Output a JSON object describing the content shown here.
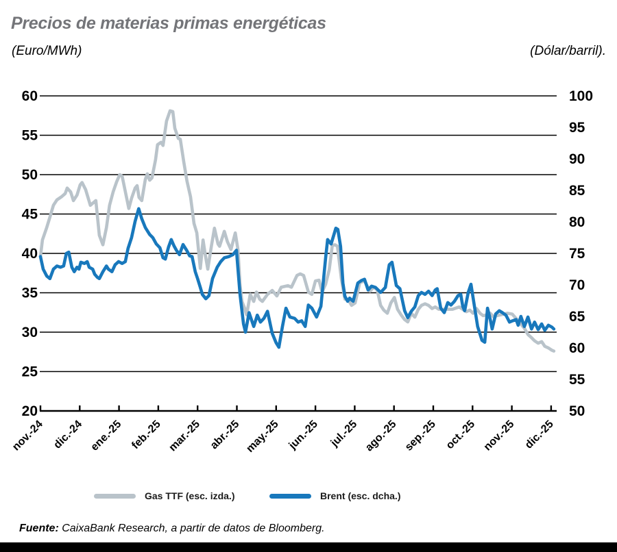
{
  "header": {
    "title": "Precios de materias primas energéticas",
    "subtitle_left": "(Euro/MWh)",
    "subtitle_right": "(Dólar/barril)."
  },
  "legend": [
    {
      "label": "Gas TTF (esc. izda.)",
      "color": "#b9c3ca"
    },
    {
      "label": "Brent (esc. dcha.)",
      "color": "#1878bc"
    }
  ],
  "source": {
    "label": "Fuente:",
    "text": " CaixaBank Research, a partir de datos de Bloomberg."
  },
  "colors": {
    "gas_ttf": "#b9c3ca",
    "brent": "#1878bc",
    "axis": "#000000",
    "title_gray": "#747579"
  },
  "chart_data": {
    "type": "line",
    "title": "Precios de materias primas energéticas",
    "xlabel": "",
    "ylabel_left": "(Euro/MWh)",
    "ylabel_right": "(Dólar/barril).",
    "grid": "horizontal",
    "legend_position": "bottom",
    "x_axis": {
      "labels": [
        "nov.-24",
        "dic.-24",
        "ene.-25",
        "feb.-25",
        "mar.-25",
        "abr.-25",
        "may.-25",
        "jun.-25",
        "jul.-25",
        "ago.-25",
        "sep.-25",
        "oct.-25",
        "nov.-25",
        "dic.-25"
      ],
      "unit": "months, 0 = nov.-24 tick"
    },
    "left_axis": {
      "min": 20,
      "max": 60,
      "step": 5,
      "ticks": [
        60,
        55,
        50,
        45,
        40,
        35,
        30,
        25,
        20
      ]
    },
    "right_axis": {
      "min": 50,
      "max": 100,
      "step": 5,
      "ticks": [
        100,
        95,
        90,
        85,
        80,
        75,
        70,
        65,
        60,
        55,
        50
      ]
    },
    "series": [
      {
        "name": "Gas TTF (esc. izda.)",
        "axis": "left",
        "color": "#b9c3ca",
        "x": [
          0,
          0.05,
          0.16,
          0.24,
          0.33,
          0.42,
          0.54,
          0.63,
          0.68,
          0.77,
          0.84,
          0.93,
          1.01,
          1.06,
          1.15,
          1.27,
          1.41,
          1.5,
          1.59,
          1.68,
          1.76,
          1.85,
          1.94,
          2.02,
          2.08,
          2.15,
          2.25,
          2.32,
          2.41,
          2.46,
          2.51,
          2.58,
          2.67,
          2.72,
          2.78,
          2.84,
          2.93,
          2.98,
          3.07,
          3.12,
          3.21,
          3.3,
          3.37,
          3.42,
          3.51,
          3.56,
          3.65,
          3.73,
          3.82,
          3.91,
          3.98,
          4.07,
          4.14,
          4.19,
          4.26,
          4.35,
          4.43,
          4.52,
          4.56,
          4.68,
          4.76,
          4.85,
          4.96,
          5.03,
          5.08,
          5.13,
          5.2,
          5.25,
          5.34,
          5.43,
          5.5,
          5.58,
          5.65,
          5.78,
          5.9,
          6.02,
          6.13,
          6.3,
          6.39,
          6.53,
          6.61,
          6.7,
          6.82,
          6.91,
          7.0,
          7.09,
          7.17,
          7.26,
          7.35,
          7.43,
          7.5,
          7.56,
          7.66,
          7.75,
          7.84,
          7.92,
          8.01,
          8.13,
          8.25,
          8.39,
          8.48,
          8.57,
          8.66,
          8.74,
          8.83,
          8.92,
          9.01,
          9.09,
          9.18,
          9.27,
          9.35,
          9.44,
          9.53,
          9.62,
          9.7,
          9.79,
          9.88,
          9.97,
          10.05,
          10.14,
          10.31,
          10.49,
          10.66,
          10.84,
          10.93,
          11.01,
          11.1,
          11.19,
          11.27,
          11.36,
          11.45,
          11.54,
          11.62,
          11.71,
          11.89,
          12.01,
          12.15,
          12.32,
          12.41,
          12.5,
          12.58,
          12.67,
          12.76,
          12.84,
          12.93,
          13.02,
          13.07
        ],
        "values": [
          39.6,
          41.7,
          43.3,
          44.6,
          46.1,
          46.8,
          47.2,
          47.6,
          48.3,
          47.8,
          46.7,
          47.4,
          48.7,
          49.0,
          48.1,
          46.1,
          46.7,
          42.3,
          41.1,
          43.3,
          46.1,
          47.8,
          49.1,
          50.0,
          49.8,
          48.1,
          45.7,
          47.0,
          48.3,
          48.6,
          47.1,
          46.7,
          49.4,
          50.1,
          49.3,
          49.6,
          51.9,
          53.8,
          54.1,
          53.7,
          56.8,
          58.1,
          58.0,
          55.9,
          54.6,
          54.5,
          51.6,
          49.2,
          47.2,
          43.8,
          42.6,
          38.1,
          41.7,
          40.0,
          38.0,
          40.9,
          43.2,
          41.2,
          40.9,
          42.8,
          41.5,
          40.5,
          42.6,
          40.4,
          36.0,
          33.9,
          33.0,
          32.2,
          34.8,
          33.9,
          35.1,
          34.2,
          33.9,
          34.8,
          35.3,
          34.6,
          35.7,
          35.9,
          35.7,
          37.2,
          37.4,
          37.2,
          35.1,
          34.8,
          36.5,
          36.6,
          35.1,
          36.1,
          37.9,
          41.0,
          41.1,
          40.9,
          36.8,
          34.2,
          34.1,
          33.4,
          33.7,
          36.3,
          36.5,
          35.2,
          35.7,
          35.4,
          33.4,
          32.8,
          32.4,
          33.7,
          34.4,
          32.9,
          32.2,
          31.6,
          31.3,
          32.4,
          31.9,
          32.9,
          33.4,
          33.6,
          33.4,
          33.0,
          33.2,
          32.9,
          32.9,
          32.9,
          33.2,
          32.6,
          32.8,
          32.4,
          33.0,
          32.4,
          32.1,
          32.2,
          32.4,
          31.9,
          32.1,
          32.2,
          32.4,
          32.3,
          31.5,
          30.5,
          29.7,
          29.3,
          28.9,
          28.6,
          28.8,
          28.2,
          28.0,
          27.7,
          27.6
        ]
      },
      {
        "name": "Brent (esc. dcha.)",
        "axis": "right",
        "color": "#1878bc",
        "x": [
          0,
          0.07,
          0.16,
          0.24,
          0.33,
          0.42,
          0.51,
          0.59,
          0.66,
          0.72,
          0.8,
          0.86,
          0.93,
          0.98,
          1.03,
          1.12,
          1.19,
          1.24,
          1.33,
          1.38,
          1.45,
          1.5,
          1.59,
          1.68,
          1.73,
          1.82,
          1.9,
          1.99,
          2.08,
          2.16,
          2.23,
          2.32,
          2.41,
          2.5,
          2.58,
          2.67,
          2.78,
          2.86,
          2.95,
          3.04,
          3.12,
          3.18,
          3.26,
          3.33,
          3.4,
          3.46,
          3.54,
          3.63,
          3.72,
          3.8,
          3.86,
          3.94,
          4.0,
          4.07,
          4.12,
          4.21,
          4.29,
          4.38,
          4.5,
          4.59,
          4.68,
          4.8,
          4.9,
          4.99,
          5.08,
          5.17,
          5.22,
          5.31,
          5.43,
          5.52,
          5.6,
          5.69,
          5.78,
          5.9,
          6.0,
          6.07,
          6.16,
          6.25,
          6.35,
          6.47,
          6.56,
          6.65,
          6.74,
          6.82,
          6.91,
          7.03,
          7.14,
          7.26,
          7.31,
          7.4,
          7.52,
          7.57,
          7.64,
          7.7,
          7.75,
          7.82,
          7.87,
          7.96,
          8.08,
          8.17,
          8.25,
          8.34,
          8.43,
          8.53,
          8.66,
          8.78,
          8.88,
          8.95,
          9.06,
          9.15,
          9.27,
          9.35,
          9.44,
          9.53,
          9.62,
          9.7,
          9.79,
          9.88,
          9.97,
          10.05,
          10.1,
          10.19,
          10.28,
          10.37,
          10.45,
          10.54,
          10.63,
          10.7,
          10.75,
          10.8,
          10.89,
          10.96,
          11.05,
          11.13,
          11.24,
          11.31,
          11.38,
          11.45,
          11.5,
          11.59,
          11.68,
          11.76,
          11.85,
          11.94,
          12.02,
          12.11,
          12.16,
          12.23,
          12.32,
          12.41,
          12.5,
          12.58,
          12.67,
          12.76,
          12.84,
          12.93,
          13.02,
          13.07
        ],
        "values": [
          74.5,
          72.5,
          71.4,
          71.0,
          72.5,
          73.0,
          72.8,
          73.0,
          75.0,
          75.2,
          72.8,
          72.1,
          72.8,
          72.5,
          73.6,
          73.4,
          73.7,
          72.8,
          72.5,
          71.7,
          71.2,
          71.0,
          72.1,
          73.0,
          72.5,
          72.1,
          73.2,
          73.7,
          73.4,
          73.7,
          75.8,
          77.5,
          80.1,
          82.1,
          80.5,
          79.1,
          78.0,
          77.5,
          76.5,
          75.9,
          74.3,
          74.1,
          76.0,
          77.2,
          76.2,
          75.5,
          74.8,
          76.4,
          75.5,
          74.6,
          74.5,
          72.1,
          71.0,
          69.6,
          68.5,
          67.8,
          68.3,
          71.0,
          72.8,
          73.7,
          74.3,
          74.5,
          74.8,
          75.5,
          68.5,
          63.8,
          62.5,
          65.6,
          63.4,
          65.2,
          64.1,
          64.7,
          65.8,
          62.3,
          60.8,
          60.1,
          63.4,
          66.3,
          64.9,
          64.7,
          64.1,
          64.3,
          63.4,
          66.8,
          66.3,
          64.9,
          66.6,
          74.3,
          77.2,
          76.5,
          79.0,
          78.8,
          76.1,
          70.3,
          68.2,
          67.4,
          67.9,
          67.4,
          70.3,
          70.7,
          70.9,
          69.2,
          69.8,
          69.6,
          68.8,
          69.6,
          73.2,
          73.6,
          69.9,
          69.4,
          65.9,
          64.8,
          65.8,
          66.5,
          68.3,
          68.8,
          68.5,
          69.0,
          68.3,
          69.2,
          69.4,
          66.3,
          65.6,
          67.2,
          66.8,
          67.4,
          68.3,
          68.5,
          66.6,
          65.9,
          68.8,
          70.1,
          66.5,
          63.4,
          61.2,
          60.9,
          66.3,
          64.5,
          63.0,
          65.4,
          65.9,
          65.6,
          65.2,
          64.1,
          64.3,
          64.5,
          63.6,
          65.0,
          63.4,
          64.9,
          63.0,
          64.1,
          62.9,
          63.8,
          62.8,
          63.6,
          63.3,
          63.0
        ]
      }
    ]
  }
}
